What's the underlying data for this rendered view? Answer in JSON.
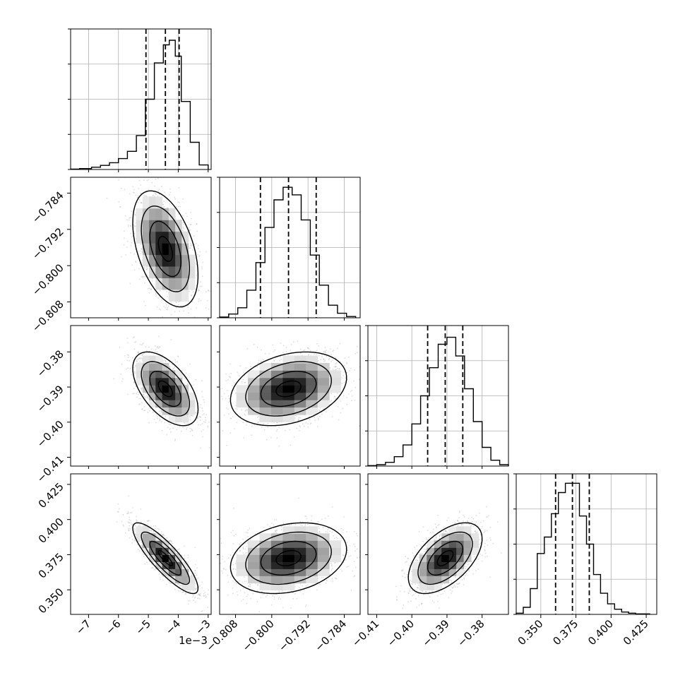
{
  "chart_data": {
    "type": "corner",
    "x_offset_label": "1e−3",
    "panels_diagonal": [
      {
        "param_index": 0,
        "type": "histogram",
        "range": [
          -7.6,
          -2.9
        ],
        "quantiles": [
          -5.08,
          -4.43,
          -3.97
        ],
        "bins": [
          {
            "x0": -7.6,
            "x1": -7.3,
            "count": 2
          },
          {
            "x0": -7.3,
            "x1": -6.9,
            "count": 4
          },
          {
            "x0": -6.9,
            "x1": -6.6,
            "count": 10
          },
          {
            "x0": -6.6,
            "x1": -6.3,
            "count": 18
          },
          {
            "x0": -6.3,
            "x1": -6.0,
            "count": 30
          },
          {
            "x0": -6.0,
            "x1": -5.7,
            "count": 48
          },
          {
            "x0": -5.7,
            "x1": -5.4,
            "count": 80
          },
          {
            "x0": -5.4,
            "x1": -5.1,
            "count": 150
          },
          {
            "x0": -5.1,
            "x1": -4.8,
            "count": 310
          },
          {
            "x0": -4.8,
            "x1": -4.5,
            "count": 470
          },
          {
            "x0": -4.5,
            "x1": -4.3,
            "count": 550
          },
          {
            "x0": -4.3,
            "x1": -4.1,
            "count": 570
          },
          {
            "x0": -4.1,
            "x1": -3.9,
            "count": 500
          },
          {
            "x0": -3.9,
            "x1": -3.6,
            "count": 300
          },
          {
            "x0": -3.6,
            "x1": -3.3,
            "count": 120
          },
          {
            "x0": -3.3,
            "x1": -3.0,
            "count": 20
          }
        ],
        "ylim": [
          0,
          620
        ]
      },
      {
        "param_index": 1,
        "type": "histogram",
        "range": [
          -0.8115,
          -0.7805
        ],
        "quantiles": [
          -0.8025,
          -0.7963,
          -0.7902
        ],
        "bins": [
          {
            "x0": -0.8115,
            "x1": -0.8095,
            "count": 3
          },
          {
            "x0": -0.8095,
            "x1": -0.8075,
            "count": 15
          },
          {
            "x0": -0.8075,
            "x1": -0.8055,
            "count": 40
          },
          {
            "x0": -0.8055,
            "x1": -0.8035,
            "count": 110
          },
          {
            "x0": -0.8035,
            "x1": -0.8015,
            "count": 220
          },
          {
            "x0": -0.8015,
            "x1": -0.7995,
            "count": 360
          },
          {
            "x0": -0.7995,
            "x1": -0.7975,
            "count": 470
          },
          {
            "x0": -0.7975,
            "x1": -0.7955,
            "count": 520
          },
          {
            "x0": -0.7955,
            "x1": -0.7935,
            "count": 490
          },
          {
            "x0": -0.7935,
            "x1": -0.7915,
            "count": 390
          },
          {
            "x0": -0.7915,
            "x1": -0.7895,
            "count": 250
          },
          {
            "x0": -0.7895,
            "x1": -0.7875,
            "count": 130
          },
          {
            "x0": -0.7875,
            "x1": -0.7855,
            "count": 50
          },
          {
            "x0": -0.7855,
            "x1": -0.7835,
            "count": 18
          },
          {
            "x0": -0.7835,
            "x1": -0.7815,
            "count": 5
          }
        ],
        "ylim": [
          0,
          560
        ]
      },
      {
        "param_index": 2,
        "type": "histogram",
        "range": [
          -0.4125,
          -0.3725
        ],
        "quantiles": [
          -0.3955,
          -0.3905,
          -0.3855
        ],
        "bins": [
          {
            "x0": -0.4125,
            "x1": -0.41,
            "count": 2
          },
          {
            "x0": -0.41,
            "x1": -0.4075,
            "count": 6
          },
          {
            "x0": -0.4075,
            "x1": -0.405,
            "count": 16
          },
          {
            "x0": -0.405,
            "x1": -0.4025,
            "count": 40
          },
          {
            "x0": -0.4025,
            "x1": -0.4,
            "count": 90
          },
          {
            "x0": -0.4,
            "x1": -0.3975,
            "count": 180
          },
          {
            "x0": -0.3975,
            "x1": -0.395,
            "count": 300
          },
          {
            "x0": -0.395,
            "x1": -0.3925,
            "count": 420
          },
          {
            "x0": -0.3925,
            "x1": -0.39,
            "count": 520
          },
          {
            "x0": -0.39,
            "x1": -0.3875,
            "count": 550
          },
          {
            "x0": -0.3875,
            "x1": -0.385,
            "count": 470
          },
          {
            "x0": -0.385,
            "x1": -0.3825,
            "count": 330
          },
          {
            "x0": -0.3825,
            "x1": -0.38,
            "count": 190
          },
          {
            "x0": -0.38,
            "x1": -0.3775,
            "count": 80
          },
          {
            "x0": -0.3775,
            "x1": -0.375,
            "count": 25
          },
          {
            "x0": -0.375,
            "x1": -0.3725,
            "count": 6
          }
        ],
        "ylim": [
          0,
          600
        ]
      },
      {
        "param_index": 3,
        "type": "histogram",
        "range": [
          0.3325,
          0.4325
        ],
        "quantiles": [
          0.3605,
          0.3725,
          0.3845
        ],
        "bins": [
          {
            "x0": 0.3325,
            "x1": 0.3375,
            "count": 5
          },
          {
            "x0": 0.3375,
            "x1": 0.3425,
            "count": 30
          },
          {
            "x0": 0.3425,
            "x1": 0.3475,
            "count": 110
          },
          {
            "x0": 0.3475,
            "x1": 0.3525,
            "count": 260
          },
          {
            "x0": 0.3525,
            "x1": 0.3575,
            "count": 330
          },
          {
            "x0": 0.3575,
            "x1": 0.3625,
            "count": 430
          },
          {
            "x0": 0.3625,
            "x1": 0.3675,
            "count": 520
          },
          {
            "x0": 0.3675,
            "x1": 0.3725,
            "count": 560
          },
          {
            "x0": 0.3725,
            "x1": 0.3775,
            "count": 560
          },
          {
            "x0": 0.3775,
            "x1": 0.3825,
            "count": 420
          },
          {
            "x0": 0.3825,
            "x1": 0.3875,
            "count": 300
          },
          {
            "x0": 0.3875,
            "x1": 0.3925,
            "count": 170
          },
          {
            "x0": 0.3925,
            "x1": 0.3975,
            "count": 90
          },
          {
            "x0": 0.3975,
            "x1": 0.4025,
            "count": 45
          },
          {
            "x0": 0.4025,
            "x1": 0.4075,
            "count": 22
          },
          {
            "x0": 0.4075,
            "x1": 0.4125,
            "count": 10
          },
          {
            "x0": 0.4125,
            "x1": 0.4175,
            "count": 5
          },
          {
            "x0": 0.4175,
            "x1": 0.4275,
            "count": 2
          }
        ],
        "ylim": [
          0,
          600
        ]
      }
    ],
    "params": [
      {
        "index": 0,
        "range": [
          -7.6,
          -2.9
        ],
        "ticks": [
          -7,
          -6,
          -5,
          -4,
          -3
        ],
        "tick_labels": [
          "−7",
          "−6",
          "−5",
          "−4",
          "−3"
        ],
        "median": -4.43,
        "sigma": 0.52,
        "offset_label": "1e−3"
      },
      {
        "index": 1,
        "range": [
          -0.8115,
          -0.7805
        ],
        "ticks": [
          -0.808,
          -0.8,
          -0.792,
          -0.784
        ],
        "tick_labels": [
          "−0.808",
          "−0.800",
          "−0.792",
          "−0.784"
        ],
        "median": -0.7963,
        "sigma": 0.0061
      },
      {
        "index": 2,
        "range": [
          -0.4125,
          -0.3725
        ],
        "ticks": [
          -0.41,
          -0.4,
          -0.39,
          -0.38
        ],
        "tick_labels": [
          "−0.41",
          "−0.40",
          "−0.39",
          "−0.38"
        ],
        "median": -0.3905,
        "sigma": 0.005
      },
      {
        "index": 3,
        "range": [
          0.3325,
          0.4325
        ],
        "ticks": [
          0.35,
          0.375,
          0.4,
          0.425
        ],
        "tick_labels": [
          "0.350",
          "0.375",
          "0.400",
          "0.425"
        ],
        "median": 0.3725,
        "sigma": 0.012
      }
    ],
    "correlations": [
      {
        "pair": [
          0,
          1
        ],
        "rho": -0.45
      },
      {
        "pair": [
          0,
          2
        ],
        "rho": -0.55
      },
      {
        "pair": [
          0,
          3
        ],
        "rho": -0.85
      },
      {
        "pair": [
          1,
          2
        ],
        "rho": 0.3
      },
      {
        "pair": [
          1,
          3
        ],
        "rho": 0.25
      },
      {
        "pair": [
          2,
          3
        ],
        "rho": 0.55
      }
    ],
    "grid": true,
    "colors": {
      "contour": "#000000",
      "points": "#9e9e9e",
      "hist": "#000000",
      "grid": "#b0b0b0"
    }
  }
}
